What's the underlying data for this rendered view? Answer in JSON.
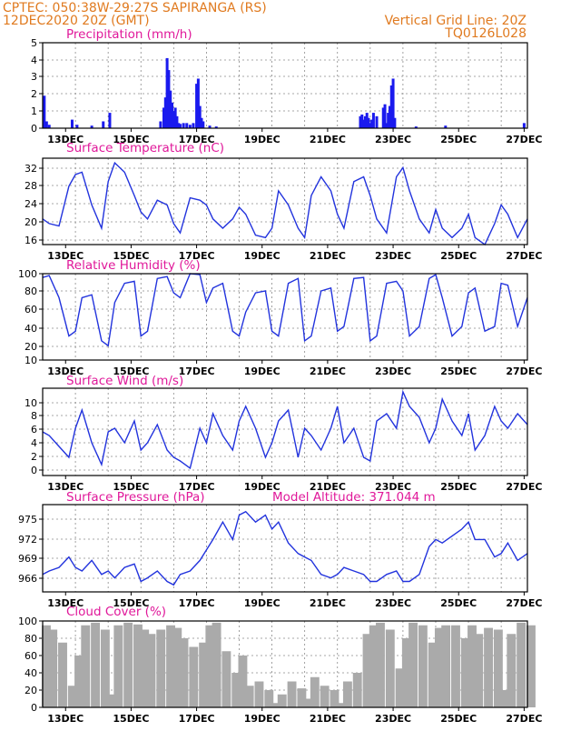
{
  "header": {
    "left_line1": "CPTEC:   050:38W-29:27S   SAPIRANGA (RS)",
    "left_line2": "12DEC2020 20Z (GMT)",
    "right_line1": "Vertical Grid Line: 20Z",
    "right_line2": "TQ0126L028"
  },
  "colors": {
    "line": "#2233dd",
    "bar": "#1a1aee",
    "cloud": "#aaaaaa",
    "title": "#e0189a",
    "header": "#e07a1f"
  },
  "x_axis_labels": [
    "13DEC",
    "15DEC",
    "17DEC",
    "19DEC",
    "21DEC",
    "23DEC",
    "25DEC",
    "27DEC"
  ],
  "chart_data": [
    {
      "type": "bar",
      "title": "Precipitation (mm/h)",
      "ylim": [
        0,
        5
      ],
      "yticks": [
        "0",
        "1",
        "2",
        "3",
        "4",
        "5"
      ],
      "x": "days since 12DEC2020 20Z",
      "bars": [
        [
          0.05,
          1.9
        ],
        [
          0.12,
          0.4
        ],
        [
          0.2,
          0.2
        ],
        [
          0.9,
          0.5
        ],
        [
          1.05,
          0.2
        ],
        [
          1.5,
          0.15
        ],
        [
          1.85,
          0.4
        ],
        [
          2.05,
          0.9
        ],
        [
          3.6,
          0.4
        ],
        [
          3.7,
          1.2
        ],
        [
          3.75,
          1.8
        ],
        [
          3.8,
          4.1
        ],
        [
          3.85,
          3.4
        ],
        [
          3.9,
          2.2
        ],
        [
          3.95,
          1.5
        ],
        [
          4.0,
          1.0
        ],
        [
          4.05,
          1.2
        ],
        [
          4.1,
          0.7
        ],
        [
          4.15,
          0.3
        ],
        [
          4.2,
          0.25
        ],
        [
          4.3,
          0.3
        ],
        [
          4.4,
          0.3
        ],
        [
          4.5,
          0.2
        ],
        [
          4.6,
          0.3
        ],
        [
          4.7,
          2.6
        ],
        [
          4.75,
          2.9
        ],
        [
          4.8,
          1.3
        ],
        [
          4.85,
          0.6
        ],
        [
          4.9,
          0.4
        ],
        [
          5.1,
          0.15
        ],
        [
          5.3,
          0.1
        ],
        [
          9.7,
          0.7
        ],
        [
          9.75,
          0.8
        ],
        [
          9.8,
          0.5
        ],
        [
          9.85,
          0.7
        ],
        [
          9.9,
          0.9
        ],
        [
          9.95,
          0.6
        ],
        [
          10.0,
          0.3
        ],
        [
          10.05,
          0.5
        ],
        [
          10.1,
          0.9
        ],
        [
          10.2,
          0.7
        ],
        [
          10.4,
          1.2
        ],
        [
          10.45,
          1.4
        ],
        [
          10.5,
          0.3
        ],
        [
          10.55,
          0.9
        ],
        [
          10.6,
          1.3
        ],
        [
          10.65,
          2.5
        ],
        [
          10.7,
          2.9
        ],
        [
          10.75,
          0.6
        ],
        [
          11.4,
          0.1
        ],
        [
          12.3,
          0.15
        ],
        [
          14.7,
          0.3
        ]
      ]
    },
    {
      "type": "line",
      "title": "Surface Temperature (nC)",
      "ylim": [
        15.5,
        34
      ],
      "yticks": [
        "16",
        "20",
        "24",
        "28",
        "32"
      ],
      "x": [
        0,
        0.2,
        0.5,
        0.8,
        1.0,
        1.2,
        1.5,
        1.8,
        2.0,
        2.2,
        2.5,
        2.8,
        3.0,
        3.2,
        3.5,
        3.8,
        4.0,
        4.2,
        4.5,
        4.8,
        5.0,
        5.2,
        5.5,
        5.8,
        6.0,
        6.2,
        6.5,
        6.8,
        7.0,
        7.2,
        7.5,
        7.8,
        8.0,
        8.2,
        8.5,
        8.8,
        9.0,
        9.2,
        9.5,
        9.8,
        10.0,
        10.2,
        10.5,
        10.8,
        11.0,
        11.2,
        11.5,
        11.8,
        12.0,
        12.2,
        12.5,
        12.8,
        13.0,
        13.2,
        13.5,
        13.8,
        14.0,
        14.2,
        14.5,
        14.8
      ],
      "y": [
        21,
        20,
        19.5,
        28,
        30.5,
        31,
        24,
        19,
        29,
        33,
        31,
        26,
        22.5,
        21,
        25,
        24,
        20,
        18,
        25.5,
        25,
        24,
        21,
        19,
        21,
        23.5,
        22,
        17.5,
        17,
        19,
        27,
        24,
        19,
        17,
        26,
        30,
        27,
        22,
        19,
        29,
        30,
        26,
        21,
        18,
        30,
        32,
        27,
        21,
        18,
        23,
        19,
        17,
        19,
        22,
        17,
        15.5,
        20,
        24,
        22,
        17,
        21
      ]
    },
    {
      "type": "line",
      "title": "Relative Humidity (%)",
      "ylim": [
        10,
        100
      ],
      "yticks": [
        "10",
        "20",
        "40",
        "60",
        "80",
        "100"
      ],
      "x": [
        0,
        0.2,
        0.5,
        0.8,
        1.0,
        1.2,
        1.5,
        1.8,
        2.0,
        2.2,
        2.5,
        2.8,
        3.0,
        3.2,
        3.5,
        3.8,
        4.0,
        4.2,
        4.5,
        4.8,
        5.0,
        5.2,
        5.5,
        5.8,
        6.0,
        6.2,
        6.5,
        6.8,
        7.0,
        7.2,
        7.5,
        7.8,
        8.0,
        8.2,
        8.5,
        8.8,
        9.0,
        9.2,
        9.5,
        9.8,
        10.0,
        10.2,
        10.5,
        10.8,
        11.0,
        11.2,
        11.5,
        11.8,
        12.0,
        12.2,
        12.5,
        12.8,
        13.0,
        13.2,
        13.5,
        13.8,
        14.0,
        14.2,
        14.5,
        14.8
      ],
      "y": [
        96,
        98,
        75,
        35,
        40,
        75,
        78,
        30,
        25,
        70,
        90,
        92,
        35,
        40,
        95,
        97,
        80,
        75,
        100,
        99,
        70,
        85,
        90,
        40,
        35,
        60,
        80,
        82,
        40,
        35,
        90,
        95,
        30,
        35,
        82,
        85,
        40,
        45,
        95,
        96,
        30,
        35,
        90,
        92,
        82,
        35,
        45,
        95,
        99,
        75,
        35,
        45,
        80,
        85,
        40,
        45,
        90,
        88,
        45,
        75
      ]
    },
    {
      "type": "line",
      "title": "Surface Wind (m/s)",
      "ylim": [
        -0.5,
        11.5
      ],
      "yticks": [
        "0",
        "2",
        "4",
        "6",
        "8",
        "10"
      ],
      "x": [
        0,
        0.2,
        0.5,
        0.8,
        1.0,
        1.2,
        1.5,
        1.8,
        2.0,
        2.2,
        2.5,
        2.8,
        3.0,
        3.2,
        3.5,
        3.8,
        4.0,
        4.2,
        4.5,
        4.8,
        5.0,
        5.2,
        5.5,
        5.8,
        6.0,
        6.2,
        6.5,
        6.8,
        7.0,
        7.2,
        7.5,
        7.8,
        8.0,
        8.2,
        8.5,
        8.8,
        9.0,
        9.2,
        9.5,
        9.8,
        10.0,
        10.2,
        10.5,
        10.8,
        11.0,
        11.2,
        11.5,
        11.8,
        12.0,
        12.2,
        12.5,
        12.8,
        13.0,
        13.2,
        13.5,
        13.8,
        14.0,
        14.2,
        14.5,
        14.8
      ],
      "y": [
        5.5,
        5,
        3.5,
        2,
        6,
        8.5,
        4,
        1,
        5.5,
        6,
        4,
        7,
        3,
        4,
        6.5,
        3,
        2,
        1.5,
        0.5,
        6,
        4,
        8,
        5,
        3,
        7,
        9,
        6,
        2,
        4,
        7,
        8.5,
        2,
        6,
        5,
        3,
        6,
        9,
        4,
        6,
        2,
        1.5,
        7,
        8,
        6,
        11,
        9,
        7.5,
        4,
        6,
        10,
        7,
        5,
        8,
        3,
        5,
        9,
        7,
        6,
        8,
        6.5
      ]
    },
    {
      "type": "line",
      "title": "Surface Pressure (hPa)",
      "annotation": "Model Altitude: 371.044 m",
      "ylim": [
        964.5,
        977
      ],
      "yticks": [
        "966",
        "969",
        "972",
        "975"
      ],
      "x": [
        0,
        0.2,
        0.5,
        0.8,
        1.0,
        1.2,
        1.5,
        1.8,
        2.0,
        2.2,
        2.5,
        2.8,
        3.0,
        3.2,
        3.5,
        3.8,
        4.0,
        4.2,
        4.5,
        4.8,
        5.0,
        5.2,
        5.5,
        5.8,
        6.0,
        6.2,
        6.5,
        6.8,
        7.0,
        7.2,
        7.5,
        7.8,
        8.0,
        8.2,
        8.5,
        8.8,
        9.0,
        9.2,
        9.5,
        9.8,
        10.0,
        10.2,
        10.5,
        10.8,
        11.0,
        11.2,
        11.5,
        11.8,
        12.0,
        12.2,
        12.5,
        12.8,
        13.0,
        13.2,
        13.5,
        13.8,
        14.0,
        14.2,
        14.5,
        14.8
      ],
      "y": [
        967,
        967.5,
        968,
        969.5,
        968,
        967.5,
        969,
        967,
        967.5,
        966.5,
        968,
        968.5,
        966,
        966.5,
        967.5,
        966,
        965.5,
        967,
        967.5,
        969,
        970.5,
        972,
        974.5,
        972,
        975.5,
        976,
        974.5,
        975.5,
        973.5,
        974.5,
        971.5,
        970,
        969.5,
        969,
        967,
        966.5,
        967,
        968,
        967.5,
        967,
        966,
        966,
        967,
        967.5,
        966,
        966,
        967,
        971,
        972,
        971.5,
        972.5,
        973.5,
        974.5,
        972,
        972,
        969.5,
        970,
        971.5,
        969,
        970
      ]
    },
    {
      "type": "bar",
      "title": "Cloud Cover (%)",
      "ylim": [
        0,
        100
      ],
      "yticks": [
        "0",
        "20",
        "40",
        "60",
        "80",
        "100"
      ],
      "x": [
        0,
        0.2,
        0.5,
        0.8,
        1.0,
        1.2,
        1.5,
        1.8,
        2.0,
        2.2,
        2.5,
        2.8,
        3.0,
        3.2,
        3.5,
        3.8,
        4.0,
        4.2,
        4.5,
        4.8,
        5.0,
        5.2,
        5.5,
        5.8,
        6.0,
        6.2,
        6.5,
        6.8,
        7.0,
        7.2,
        7.5,
        7.8,
        8.0,
        8.2,
        8.5,
        8.8,
        9.0,
        9.2,
        9.5,
        9.8,
        10.0,
        10.2,
        10.5,
        10.8,
        11.0,
        11.2,
        11.5,
        11.8,
        12.0,
        12.2,
        12.5,
        12.8,
        13.0,
        13.2,
        13.5,
        13.8,
        14.0,
        14.2,
        14.5,
        14.8
      ],
      "y": [
        95,
        90,
        75,
        25,
        60,
        95,
        98,
        90,
        15,
        95,
        98,
        96,
        90,
        85,
        90,
        95,
        92,
        80,
        70,
        75,
        95,
        98,
        65,
        40,
        60,
        25,
        30,
        20,
        5,
        15,
        30,
        22,
        10,
        35,
        25,
        20,
        5,
        30,
        40,
        85,
        95,
        98,
        90,
        45,
        80,
        98,
        95,
        75,
        92,
        95,
        95,
        80,
        95,
        85,
        92,
        90,
        20,
        85,
        98,
        95
      ]
    }
  ]
}
